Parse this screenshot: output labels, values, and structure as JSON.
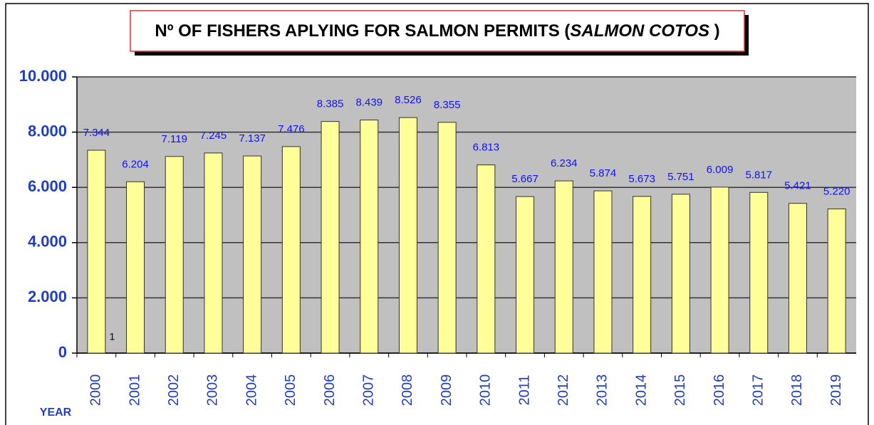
{
  "chart_data": {
    "type": "bar",
    "title": [
      "Nº OF FISHERS APLYING FOR SALMON PERMITS (",
      "SALMON COTOS",
      " )"
    ],
    "x_label": "YEAR",
    "annotation": "1",
    "categories": [
      "2000",
      "2001",
      "2002",
      "2003",
      "2004",
      "2005",
      "2006",
      "2007",
      "2008",
      "2009",
      "2010",
      "2011",
      "2012",
      "2013",
      "2014",
      "2015",
      "2016",
      "2017",
      "2018",
      "2019"
    ],
    "values": [
      7344,
      6204,
      7119,
      7245,
      7137,
      7476,
      8385,
      8439,
      8526,
      8355,
      6813,
      5667,
      6234,
      5874,
      5673,
      5751,
      6009,
      5817,
      5421,
      5220
    ],
    "value_labels": [
      "7.344",
      "6.204",
      "7.119",
      "7.245",
      "7.137",
      "7.476",
      "8.385",
      "8.439",
      "8.526",
      "8.355",
      "6.813",
      "5.667",
      "6.234",
      "5.874",
      "5.673",
      "5.751",
      "6.009",
      "5.817",
      "5.421",
      "5.220"
    ],
    "color": "#ffff99",
    "ylim": [
      0,
      10000
    ],
    "yticks": [
      0,
      {
        "value": 2000,
        "label": "2.000"
      },
      {
        "value": 4000,
        "label": "4.000"
      },
      {
        "value": 6000,
        "label": "6.000"
      },
      {
        "value": 8000,
        "label": "8.000"
      },
      {
        "value": 10000,
        "label": "10.000"
      }
    ],
    "grid": true
  }
}
